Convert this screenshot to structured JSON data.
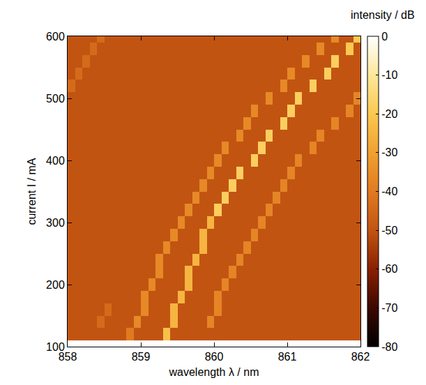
{
  "chart_data": {
    "type": "heatmap",
    "x_label": "wavelength λ / nm",
    "y_label": "current I / mA",
    "xlim": [
      858,
      862
    ],
    "ylim": [
      100,
      600
    ],
    "xticks": [
      858,
      859,
      860,
      861,
      862
    ],
    "yticks": [
      100,
      200,
      300,
      400,
      500,
      600
    ],
    "x": [
      858.05,
      858.15,
      858.25,
      858.35,
      858.45,
      858.55,
      858.65,
      858.75,
      858.85,
      858.95,
      859.05,
      859.15,
      859.25,
      859.35,
      859.45,
      859.55,
      859.65,
      859.75,
      859.85,
      859.95,
      860.05,
      860.15,
      860.25,
      860.35,
      860.45,
      860.55,
      860.65,
      860.75,
      860.85,
      860.95,
      861.05,
      861.15,
      861.25,
      861.35,
      861.45,
      861.55,
      861.65,
      861.75,
      861.85,
      861.95
    ],
    "y": [
      120,
      140,
      160,
      180,
      200,
      220,
      240,
      260,
      280,
      300,
      320,
      340,
      360,
      380,
      400,
      420,
      440,
      460,
      480,
      500,
      520,
      540,
      560,
      580,
      600
    ],
    "z": [
      [
        -50,
        -50,
        -50,
        -50,
        -50,
        -50,
        -50,
        -50,
        -40,
        -50,
        -50,
        -50,
        -50,
        -22,
        -50,
        -50,
        -50,
        -50,
        -50,
        -50,
        -50,
        -50,
        -50,
        -50,
        -50,
        -50,
        -50,
        -50,
        -50,
        -50,
        -50,
        -50,
        -50,
        -50,
        -50,
        -50,
        -50,
        -50,
        -50,
        -50
      ],
      [
        -50,
        -50,
        -50,
        -50,
        -44,
        -50,
        -50,
        -50,
        -50,
        -36,
        -50,
        -50,
        -50,
        -50,
        -25,
        -50,
        -50,
        -50,
        -50,
        -37,
        -50,
        -50,
        -50,
        -50,
        -50,
        -50,
        -50,
        -50,
        -50,
        -50,
        -50,
        -50,
        -50,
        -50,
        -50,
        -50,
        -50,
        -50,
        -50,
        -50
      ],
      [
        -50,
        -50,
        -50,
        -50,
        -50,
        -44,
        -50,
        -50,
        -50,
        -50,
        -36,
        -50,
        -50,
        -50,
        -25,
        -50,
        -50,
        -50,
        -50,
        -50,
        -37,
        -50,
        -50,
        -50,
        -50,
        -50,
        -50,
        -50,
        -50,
        -50,
        -50,
        -50,
        -50,
        -50,
        -50,
        -50,
        -50,
        -50,
        -50,
        -50
      ],
      [
        -50,
        -50,
        -50,
        -50,
        -50,
        -50,
        -50,
        -50,
        -50,
        -50,
        -36,
        -50,
        -50,
        -50,
        -50,
        -25,
        -50,
        -50,
        -50,
        -50,
        -37,
        -50,
        -50,
        -50,
        -50,
        -50,
        -50,
        -50,
        -50,
        -50,
        -50,
        -50,
        -50,
        -50,
        -50,
        -50,
        -50,
        -50,
        -50,
        -50
      ],
      [
        -50,
        -50,
        -50,
        -50,
        -50,
        -50,
        -50,
        -50,
        -50,
        -50,
        -50,
        -36,
        -50,
        -50,
        -50,
        -50,
        -25,
        -50,
        -50,
        -50,
        -50,
        -37,
        -50,
        -50,
        -50,
        -50,
        -50,
        -50,
        -50,
        -50,
        -50,
        -50,
        -50,
        -50,
        -50,
        -50,
        -50,
        -50,
        -50,
        -50
      ],
      [
        -50,
        -50,
        -50,
        -50,
        -50,
        -50,
        -50,
        -50,
        -50,
        -50,
        -50,
        -50,
        -36,
        -50,
        -50,
        -50,
        -25,
        -50,
        -50,
        -50,
        -50,
        -50,
        -37,
        -50,
        -50,
        -50,
        -50,
        -50,
        -50,
        -50,
        -50,
        -50,
        -50,
        -50,
        -50,
        -50,
        -50,
        -50,
        -50,
        -50
      ],
      [
        -50,
        -50,
        -50,
        -50,
        -50,
        -50,
        -50,
        -50,
        -50,
        -50,
        -50,
        -50,
        -36,
        -50,
        -50,
        -50,
        -50,
        -25,
        -50,
        -50,
        -50,
        -50,
        -50,
        -37,
        -50,
        -50,
        -50,
        -50,
        -50,
        -50,
        -50,
        -50,
        -50,
        -50,
        -50,
        -50,
        -50,
        -50,
        -50,
        -50
      ],
      [
        -50,
        -50,
        -50,
        -50,
        -50,
        -50,
        -50,
        -50,
        -50,
        -50,
        -50,
        -50,
        -50,
        -36,
        -50,
        -50,
        -50,
        -50,
        -25,
        -50,
        -50,
        -50,
        -50,
        -50,
        -37,
        -50,
        -50,
        -50,
        -50,
        -50,
        -50,
        -50,
        -50,
        -50,
        -50,
        -50,
        -50,
        -50,
        -50,
        -50
      ],
      [
        -50,
        -50,
        -50,
        -50,
        -50,
        -50,
        -50,
        -50,
        -50,
        -50,
        -50,
        -50,
        -50,
        -50,
        -36,
        -50,
        -50,
        -50,
        -25,
        -50,
        -50,
        -50,
        -50,
        -50,
        -50,
        -37,
        -50,
        -50,
        -50,
        -50,
        -50,
        -50,
        -50,
        -50,
        -50,
        -50,
        -50,
        -50,
        -50,
        -50
      ],
      [
        -50,
        -50,
        -50,
        -50,
        -50,
        -50,
        -50,
        -50,
        -50,
        -50,
        -50,
        -50,
        -50,
        -50,
        -50,
        -36,
        -50,
        -50,
        -50,
        -25,
        -50,
        -50,
        -50,
        -50,
        -50,
        -50,
        -37,
        -50,
        -50,
        -50,
        -50,
        -50,
        -50,
        -50,
        -50,
        -50,
        -50,
        -50,
        -50,
        -50
      ],
      [
        -50,
        -50,
        -50,
        -50,
        -50,
        -50,
        -50,
        -50,
        -50,
        -50,
        -50,
        -50,
        -50,
        -50,
        -50,
        -50,
        -36,
        -50,
        -50,
        -50,
        -18,
        -50,
        -50,
        -50,
        -50,
        -50,
        -50,
        -37,
        -50,
        -50,
        -50,
        -50,
        -50,
        -50,
        -50,
        -50,
        -50,
        -50,
        -50,
        -50
      ],
      [
        -50,
        -50,
        -50,
        -50,
        -50,
        -50,
        -50,
        -50,
        -50,
        -50,
        -50,
        -50,
        -50,
        -50,
        -50,
        -50,
        -50,
        -36,
        -50,
        -50,
        -50,
        -18,
        -50,
        -50,
        -50,
        -50,
        -50,
        -50,
        -37,
        -50,
        -50,
        -50,
        -50,
        -50,
        -50,
        -50,
        -50,
        -50,
        -50,
        -50
      ],
      [
        -50,
        -50,
        -50,
        -50,
        -50,
        -50,
        -50,
        -50,
        -50,
        -50,
        -50,
        -50,
        -50,
        -50,
        -50,
        -50,
        -50,
        -50,
        -36,
        -50,
        -50,
        -50,
        -18,
        -50,
        -50,
        -50,
        -50,
        -50,
        -50,
        -37,
        -50,
        -50,
        -50,
        -50,
        -50,
        -50,
        -50,
        -50,
        -50,
        -50
      ],
      [
        -50,
        -50,
        -50,
        -50,
        -50,
        -50,
        -50,
        -50,
        -50,
        -50,
        -50,
        -50,
        -50,
        -50,
        -50,
        -50,
        -50,
        -50,
        -50,
        -36,
        -50,
        -50,
        -50,
        -18,
        -50,
        -50,
        -50,
        -50,
        -50,
        -50,
        -37,
        -50,
        -50,
        -50,
        -50,
        -50,
        -50,
        -50,
        -50,
        -50
      ],
      [
        -50,
        -50,
        -50,
        -50,
        -50,
        -50,
        -50,
        -50,
        -50,
        -50,
        -50,
        -50,
        -50,
        -50,
        -50,
        -50,
        -50,
        -50,
        -50,
        -50,
        -36,
        -50,
        -50,
        -50,
        -50,
        -18,
        -50,
        -50,
        -50,
        -50,
        -50,
        -37,
        -50,
        -50,
        -50,
        -50,
        -50,
        -50,
        -50,
        -50
      ],
      [
        -50,
        -50,
        -50,
        -50,
        -50,
        -50,
        -50,
        -50,
        -50,
        -50,
        -50,
        -50,
        -50,
        -50,
        -50,
        -50,
        -50,
        -50,
        -50,
        -50,
        -50,
        -36,
        -50,
        -50,
        -50,
        -50,
        -18,
        -50,
        -50,
        -50,
        -50,
        -50,
        -50,
        -37,
        -50,
        -50,
        -50,
        -50,
        -50,
        -50
      ],
      [
        -50,
        -50,
        -50,
        -50,
        -50,
        -50,
        -50,
        -50,
        -50,
        -50,
        -50,
        -50,
        -50,
        -50,
        -50,
        -50,
        -50,
        -50,
        -50,
        -50,
        -50,
        -50,
        -50,
        -36,
        -50,
        -50,
        -50,
        -18,
        -50,
        -50,
        -50,
        -50,
        -50,
        -50,
        -37,
        -50,
        -50,
        -50,
        -50,
        -50
      ],
      [
        -50,
        -50,
        -50,
        -50,
        -50,
        -50,
        -50,
        -50,
        -50,
        -50,
        -50,
        -50,
        -50,
        -50,
        -50,
        -50,
        -50,
        -50,
        -50,
        -50,
        -50,
        -50,
        -50,
        -50,
        -36,
        -50,
        -50,
        -50,
        -50,
        -18,
        -50,
        -50,
        -50,
        -50,
        -50,
        -50,
        -37,
        -50,
        -50,
        -50
      ],
      [
        -50,
        -50,
        -50,
        -50,
        -50,
        -50,
        -50,
        -50,
        -50,
        -50,
        -50,
        -50,
        -50,
        -50,
        -50,
        -50,
        -50,
        -50,
        -50,
        -50,
        -50,
        -50,
        -50,
        -50,
        -50,
        -36,
        -50,
        -50,
        -50,
        -50,
        -18,
        -50,
        -50,
        -50,
        -50,
        -50,
        -50,
        -50,
        -37,
        -50
      ],
      [
        -50,
        -50,
        -50,
        -50,
        -50,
        -50,
        -50,
        -50,
        -50,
        -50,
        -50,
        -50,
        -50,
        -50,
        -50,
        -50,
        -50,
        -50,
        -50,
        -50,
        -50,
        -50,
        -50,
        -50,
        -50,
        -50,
        -50,
        -36,
        -50,
        -50,
        -50,
        -18,
        -50,
        -50,
        -50,
        -50,
        -50,
        -50,
        -50,
        -37
      ],
      [
        -44,
        -50,
        -50,
        -50,
        -50,
        -50,
        -50,
        -50,
        -50,
        -50,
        -50,
        -50,
        -50,
        -50,
        -50,
        -50,
        -50,
        -50,
        -50,
        -50,
        -50,
        -50,
        -50,
        -50,
        -50,
        -50,
        -50,
        -50,
        -50,
        -36,
        -50,
        -50,
        -50,
        -18,
        -50,
        -50,
        -50,
        -50,
        -50,
        -50
      ],
      [
        -50,
        -44,
        -50,
        -50,
        -50,
        -50,
        -50,
        -50,
        -50,
        -50,
        -50,
        -50,
        -50,
        -50,
        -50,
        -50,
        -50,
        -50,
        -50,
        -50,
        -50,
        -50,
        -50,
        -50,
        -50,
        -50,
        -50,
        -50,
        -50,
        -50,
        -36,
        -50,
        -50,
        -50,
        -50,
        -18,
        -50,
        -50,
        -50,
        -50
      ],
      [
        -50,
        -50,
        -44,
        -50,
        -50,
        -50,
        -50,
        -50,
        -50,
        -50,
        -50,
        -50,
        -50,
        -50,
        -50,
        -50,
        -50,
        -50,
        -50,
        -50,
        -50,
        -50,
        -50,
        -50,
        -50,
        -50,
        -50,
        -50,
        -50,
        -50,
        -50,
        -50,
        -36,
        -50,
        -50,
        -50,
        -18,
        -50,
        -50,
        -50
      ],
      [
        -50,
        -50,
        -50,
        -44,
        -50,
        -50,
        -50,
        -50,
        -50,
        -50,
        -50,
        -50,
        -50,
        -50,
        -50,
        -50,
        -50,
        -50,
        -50,
        -50,
        -50,
        -50,
        -50,
        -50,
        -50,
        -50,
        -50,
        -50,
        -50,
        -50,
        -50,
        -50,
        -50,
        -50,
        -36,
        -50,
        -50,
        -50,
        -20,
        -50
      ],
      [
        -50,
        -50,
        -50,
        -50,
        -44,
        -50,
        -50,
        -50,
        -50,
        -50,
        -50,
        -50,
        -50,
        -50,
        -50,
        -50,
        -50,
        -50,
        -50,
        -50,
        -50,
        -50,
        -50,
        -50,
        -50,
        -50,
        -50,
        -50,
        -50,
        -50,
        -50,
        -50,
        -50,
        -50,
        -50,
        -50,
        -36,
        -50,
        -50,
        -20
      ]
    ],
    "colorbar": {
      "title": "intensity / dB",
      "range": [
        -80,
        0
      ],
      "ticks": [
        -80,
        -70,
        -60,
        -50,
        -40,
        -30,
        -20,
        -10,
        0
      ]
    }
  }
}
